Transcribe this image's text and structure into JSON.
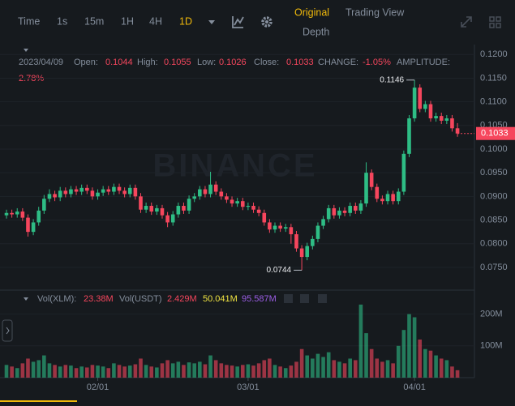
{
  "toolbar": {
    "intervals": [
      "Time",
      "1s",
      "15m",
      "1H",
      "4H",
      "1D"
    ],
    "views": [
      "Original",
      "Trading View",
      "Depth"
    ]
  },
  "info": {
    "date": "2023/04/09",
    "open_label": "Open:",
    "open": "0.1044",
    "high_label": "High:",
    "high": "0.1055",
    "low_label": "Low:",
    "low": "0.1026",
    "close_label": "Close:",
    "close": "0.1033",
    "change_label": "CHANGE:",
    "change": "-1.05%",
    "amplitude_label": "AMPLITUDE:",
    "amplitude": "2.78%"
  },
  "watermark": "BINANCE",
  "chart_data": [
    {
      "type": "candlestick",
      "up_color": "#2ebd85",
      "down_color": "#f6465d",
      "grid": true,
      "ylim": [
        0.0707,
        0.1221
      ],
      "yticks": [
        {
          "value": 0.12,
          "label": "0.1200"
        },
        {
          "value": 0.115,
          "label": "0.1150"
        },
        {
          "value": 0.11,
          "label": "0.1100"
        },
        {
          "value": 0.105,
          "label": "0.1050"
        },
        {
          "value": 0.1,
          "label": "0.1000"
        },
        {
          "value": 0.095,
          "label": "0.0950"
        },
        {
          "value": 0.09,
          "label": "0.0900"
        },
        {
          "value": 0.085,
          "label": "0.0850"
        },
        {
          "value": 0.08,
          "label": "0.0800"
        },
        {
          "value": 0.075,
          "label": "0.0750"
        }
      ],
      "annotations": [
        {
          "text": "0.1146",
          "index": 76,
          "value": 0.1146
        },
        {
          "text": "0.0744",
          "index": 55,
          "value": 0.0744
        }
      ],
      "open": [
        0.086,
        0.0865,
        0.0862,
        0.0868,
        0.0855,
        0.0825,
        0.0845,
        0.087,
        0.0895,
        0.0905,
        0.0898,
        0.0912,
        0.0905,
        0.0915,
        0.091,
        0.0918,
        0.0912,
        0.09,
        0.0908,
        0.0915,
        0.091,
        0.092,
        0.0912,
        0.0905,
        0.0918,
        0.09,
        0.0872,
        0.088,
        0.0868,
        0.0875,
        0.086,
        0.0845,
        0.0862,
        0.088,
        0.087,
        0.0895,
        0.09,
        0.0915,
        0.0905,
        0.0925,
        0.091,
        0.09,
        0.0893,
        0.0885,
        0.089,
        0.0878,
        0.088,
        0.0872,
        0.0865,
        0.0845,
        0.083,
        0.0838,
        0.0832,
        0.0835,
        0.082,
        0.079,
        0.0772,
        0.0795,
        0.081,
        0.0838,
        0.0852,
        0.0875,
        0.086,
        0.087,
        0.0865,
        0.088,
        0.087,
        0.0885,
        0.095,
        0.092,
        0.0895,
        0.089,
        0.0905,
        0.089,
        0.091,
        0.099,
        0.1065,
        0.113,
        0.1085,
        0.1095,
        0.1065,
        0.107,
        0.106,
        0.1065,
        0.1044
      ],
      "high": [
        0.0872,
        0.0872,
        0.0875,
        0.0875,
        0.0862,
        0.0852,
        0.0878,
        0.0903,
        0.0915,
        0.0912,
        0.092,
        0.0919,
        0.0922,
        0.0922,
        0.0925,
        0.0925,
        0.0919,
        0.0915,
        0.0922,
        0.0922,
        0.0927,
        0.0927,
        0.0919,
        0.0925,
        0.0925,
        0.0907,
        0.0887,
        0.0887,
        0.0882,
        0.0882,
        0.0867,
        0.0869,
        0.0887,
        0.0887,
        0.0902,
        0.0907,
        0.0922,
        0.0922,
        0.0952,
        0.0932,
        0.0917,
        0.0907,
        0.09,
        0.0897,
        0.0897,
        0.0887,
        0.0887,
        0.0879,
        0.0872,
        0.0852,
        0.0845,
        0.0845,
        0.0842,
        0.0842,
        0.0827,
        0.0797,
        0.0802,
        0.0817,
        0.0845,
        0.0859,
        0.0882,
        0.0882,
        0.0877,
        0.0877,
        0.0887,
        0.0887,
        0.0892,
        0.0972,
        0.0957,
        0.0927,
        0.0902,
        0.0912,
        0.0912,
        0.0917,
        0.0997,
        0.1072,
        0.1146,
        0.1137,
        0.1102,
        0.1102,
        0.1077,
        0.1077,
        0.1072,
        0.1072,
        0.1055
      ],
      "low": [
        0.0853,
        0.0855,
        0.0855,
        0.0848,
        0.0815,
        0.0818,
        0.0838,
        0.0863,
        0.0888,
        0.089,
        0.089,
        0.0898,
        0.0898,
        0.0903,
        0.0903,
        0.0905,
        0.0893,
        0.0893,
        0.0901,
        0.0903,
        0.0903,
        0.0905,
        0.0898,
        0.0898,
        0.0893,
        0.0865,
        0.0865,
        0.0861,
        0.0861,
        0.0853,
        0.0835,
        0.0838,
        0.0855,
        0.0863,
        0.0863,
        0.0888,
        0.0893,
        0.0898,
        0.0898,
        0.0903,
        0.0893,
        0.0886,
        0.0878,
        0.0878,
        0.0871,
        0.0871,
        0.0865,
        0.0858,
        0.0838,
        0.0823,
        0.0823,
        0.0825,
        0.0825,
        0.08,
        0.0783,
        0.0744,
        0.0765,
        0.0788,
        0.0803,
        0.0831,
        0.0845,
        0.0853,
        0.0853,
        0.0858,
        0.0858,
        0.0863,
        0.0863,
        0.0878,
        0.0913,
        0.0888,
        0.0883,
        0.0883,
        0.0883,
        0.0883,
        0.0903,
        0.0983,
        0.1058,
        0.1078,
        0.1078,
        0.1058,
        0.1058,
        0.1053,
        0.1053,
        0.1037,
        0.1026
      ],
      "close": [
        0.0865,
        0.0862,
        0.0868,
        0.0855,
        0.0825,
        0.0845,
        0.087,
        0.0895,
        0.0905,
        0.0898,
        0.0912,
        0.0905,
        0.0915,
        0.091,
        0.0918,
        0.0912,
        0.09,
        0.0908,
        0.0915,
        0.091,
        0.092,
        0.0912,
        0.0905,
        0.0918,
        0.09,
        0.0872,
        0.088,
        0.0868,
        0.0875,
        0.086,
        0.0845,
        0.0862,
        0.088,
        0.087,
        0.0895,
        0.09,
        0.0915,
        0.0905,
        0.0925,
        0.091,
        0.09,
        0.0893,
        0.0885,
        0.089,
        0.0878,
        0.088,
        0.0872,
        0.0865,
        0.0845,
        0.083,
        0.0838,
        0.0832,
        0.0835,
        0.082,
        0.079,
        0.0772,
        0.0795,
        0.081,
        0.0838,
        0.0852,
        0.0875,
        0.086,
        0.087,
        0.0865,
        0.088,
        0.087,
        0.0885,
        0.095,
        0.092,
        0.0895,
        0.089,
        0.0905,
        0.089,
        0.091,
        0.099,
        0.1065,
        0.113,
        0.1085,
        0.1095,
        0.1065,
        0.107,
        0.106,
        0.1065,
        0.1044,
        0.1033
      ]
    },
    {
      "type": "bar",
      "legend": [
        "Vol(XLM):",
        "23.38M",
        "Vol(USDT)",
        "2.429M",
        "50.041M",
        "95.587M"
      ],
      "ylim": [
        0,
        250
      ],
      "yticks": [
        {
          "value": 100,
          "label": "100M"
        },
        {
          "value": 200,
          "label": "200M"
        }
      ],
      "categories": [
        null,
        null,
        null,
        null,
        null,
        null,
        null,
        null,
        null,
        null,
        null,
        null,
        null,
        null,
        null,
        null,
        null,
        "02/01",
        null,
        null,
        null,
        null,
        null,
        null,
        null,
        null,
        null,
        null,
        null,
        null,
        null,
        null,
        null,
        null,
        null,
        null,
        null,
        null,
        null,
        null,
        null,
        null,
        null,
        null,
        null,
        "03/01",
        null,
        null,
        null,
        null,
        null,
        null,
        null,
        null,
        null,
        null,
        null,
        null,
        null,
        null,
        null,
        null,
        null,
        null,
        null,
        null,
        null,
        null,
        null,
        null,
        null,
        null,
        null,
        null,
        null,
        null,
        "04/01",
        null,
        null,
        null,
        null,
        null,
        null,
        null,
        null
      ],
      "values": [
        40,
        35,
        30,
        45,
        60,
        50,
        55,
        70,
        45,
        40,
        35,
        40,
        38,
        30,
        35,
        32,
        40,
        38,
        35,
        30,
        45,
        40,
        35,
        38,
        42,
        60,
        40,
        35,
        32,
        45,
        55,
        45,
        50,
        40,
        48,
        45,
        50,
        42,
        70,
        55,
        45,
        40,
        38,
        35,
        40,
        42,
        38,
        45,
        55,
        60,
        40,
        35,
        30,
        38,
        50,
        90,
        70,
        60,
        75,
        65,
        80,
        55,
        50,
        45,
        60,
        55,
        230,
        140,
        90,
        60,
        50,
        55,
        45,
        100,
        150,
        200,
        190,
        120,
        90,
        85,
        70,
        60,
        55,
        35,
        23.38
      ]
    }
  ]
}
